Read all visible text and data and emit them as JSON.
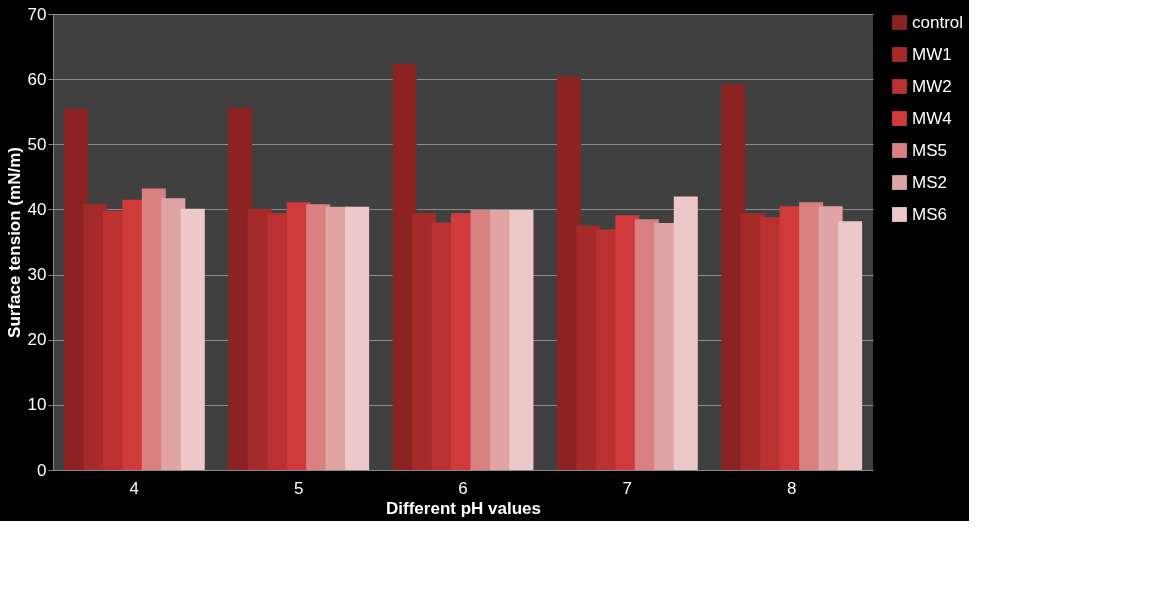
{
  "chart_data": {
    "type": "bar",
    "xlabel": "Different pH values",
    "ylabel": "Surface tension (mN/m)",
    "categories": [
      "4",
      "5",
      "6",
      "7",
      "8"
    ],
    "series": [
      {
        "name": "control",
        "color": "#8b2323",
        "values": [
          55.4,
          55.6,
          62.3,
          60.4,
          59.2
        ]
      },
      {
        "name": "MW1",
        "color": "#a52a2a",
        "values": [
          40.8,
          40.1,
          39.4,
          37.5,
          39.4
        ]
      },
      {
        "name": "MW2",
        "color": "#bb3030",
        "values": [
          39.8,
          39.4,
          38.0,
          36.9,
          38.8
        ]
      },
      {
        "name": "MW4",
        "color": "#d03a3a",
        "values": [
          41.5,
          41.1,
          39.4,
          39.1,
          40.5
        ]
      },
      {
        "name": "MS5",
        "color": "#d98080",
        "values": [
          43.2,
          40.8,
          39.9,
          38.5,
          41.1
        ]
      },
      {
        "name": "MS2",
        "color": "#e0a4a4",
        "values": [
          41.7,
          40.4,
          39.9,
          37.9,
          40.5
        ]
      },
      {
        "name": "MS6",
        "color": "#ecc8c8",
        "values": [
          40.1,
          40.4,
          39.9,
          42.0,
          38.2
        ]
      }
    ],
    "ylim": [
      0,
      70
    ],
    "yticks": [
      0,
      10,
      20,
      30,
      40,
      50,
      60,
      70
    ],
    "grid": "y",
    "legend": "right"
  }
}
